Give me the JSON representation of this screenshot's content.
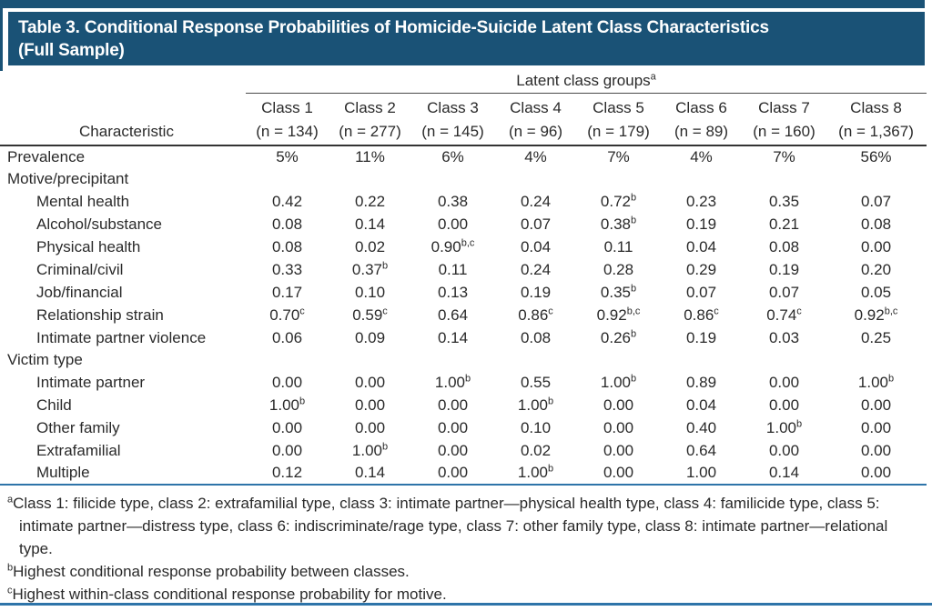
{
  "title": {
    "line1": "Table 3. Conditional Response Probabilities of Homicide-Suicide Latent Class Characteristics",
    "line2": "(Full Sample)"
  },
  "table": {
    "group_header": "Latent class groups",
    "group_header_sup": "a",
    "row_header_label": "Characteristic",
    "classes": [
      {
        "name": "Class 1",
        "n": "(n = 134)"
      },
      {
        "name": "Class 2",
        "n": "(n = 277)"
      },
      {
        "name": "Class 3",
        "n": "(n = 145)"
      },
      {
        "name": "Class 4",
        "n": "(n = 96)"
      },
      {
        "name": "Class 5",
        "n": "(n = 179)"
      },
      {
        "name": "Class 6",
        "n": "(n = 89)"
      },
      {
        "name": "Class 7",
        "n": "(n = 160)"
      },
      {
        "name": "Class 8",
        "n": "(n = 1,367)"
      }
    ],
    "rows": [
      {
        "label": "Prevalence",
        "indent": false,
        "section": false,
        "values": [
          "5%",
          "11%",
          "6%",
          "4%",
          "7%",
          "4%",
          "7%",
          "56%"
        ]
      },
      {
        "label": "Motive/precipitant",
        "indent": false,
        "section": true,
        "values": []
      },
      {
        "label": "Mental health",
        "indent": true,
        "section": false,
        "values": [
          "0.42",
          "0.22",
          "0.38",
          "0.24",
          "0.72^b",
          "0.23",
          "0.35",
          "0.07"
        ]
      },
      {
        "label": "Alcohol/substance",
        "indent": true,
        "section": false,
        "values": [
          "0.08",
          "0.14",
          "0.00",
          "0.07",
          "0.38^b",
          "0.19",
          "0.21",
          "0.08"
        ]
      },
      {
        "label": "Physical health",
        "indent": true,
        "section": false,
        "values": [
          "0.08",
          "0.02",
          "0.90^b,c",
          "0.04",
          "0.11",
          "0.04",
          "0.08",
          "0.00"
        ]
      },
      {
        "label": "Criminal/civil",
        "indent": true,
        "section": false,
        "values": [
          "0.33",
          "0.37^b",
          "0.11",
          "0.24",
          "0.28",
          "0.29",
          "0.19",
          "0.20"
        ]
      },
      {
        "label": "Job/financial",
        "indent": true,
        "section": false,
        "values": [
          "0.17",
          "0.10",
          "0.13",
          "0.19",
          "0.35^b",
          "0.07",
          "0.07",
          "0.05"
        ]
      },
      {
        "label": "Relationship strain",
        "indent": true,
        "section": false,
        "values": [
          "0.70^c",
          "0.59^c",
          "0.64",
          "0.86^c",
          "0.92^b,c",
          "0.86^c",
          "0.74^c",
          "0.92^b,c"
        ]
      },
      {
        "label": "Intimate partner violence",
        "indent": true,
        "section": false,
        "values": [
          "0.06",
          "0.09",
          "0.14",
          "0.08",
          "0.26^b",
          "0.19",
          "0.03",
          "0.25"
        ]
      },
      {
        "label": "Victim type",
        "indent": false,
        "section": true,
        "values": []
      },
      {
        "label": "Intimate partner",
        "indent": true,
        "section": false,
        "values": [
          "0.00",
          "0.00",
          "1.00^b",
          "0.55",
          "1.00^b",
          "0.89",
          "0.00",
          "1.00^b"
        ]
      },
      {
        "label": "Child",
        "indent": true,
        "section": false,
        "values": [
          "1.00^b",
          "0.00",
          "0.00",
          "1.00^b",
          "0.00",
          "0.04",
          "0.00",
          "0.00"
        ]
      },
      {
        "label": "Other family",
        "indent": true,
        "section": false,
        "values": [
          "0.00",
          "0.00",
          "0.00",
          "0.10",
          "0.00",
          "0.40",
          "1.00^b",
          "0.00"
        ]
      },
      {
        "label": "Extrafamilial",
        "indent": true,
        "section": false,
        "values": [
          "0.00",
          "1.00^b",
          "0.00",
          "0.02",
          "0.00",
          "0.64",
          "0.00",
          "0.00"
        ]
      },
      {
        "label": "Multiple",
        "indent": true,
        "section": false,
        "values": [
          "0.12",
          "0.14",
          "0.00",
          "1.00^b",
          "0.00",
          "1.00",
          "0.14",
          "0.00"
        ]
      }
    ]
  },
  "footnotes": [
    {
      "sup": "a",
      "text": "Class 1: filicide type, class 2: extrafamilial type, class 3: intimate partner—physical health type, class 4: familicide type, class 5: intimate partner—distress type, class 6: indiscriminate/rage type, class 7: other family type, class 8: intimate partner—relational type."
    },
    {
      "sup": "b",
      "text": "Highest conditional response probability between classes."
    },
    {
      "sup": "c",
      "text": "Highest within-class conditional response probability for motive."
    }
  ],
  "colors": {
    "header_bg": "#1a5276",
    "rule_blue": "#2e74a9",
    "text": "#2a2a2a"
  }
}
